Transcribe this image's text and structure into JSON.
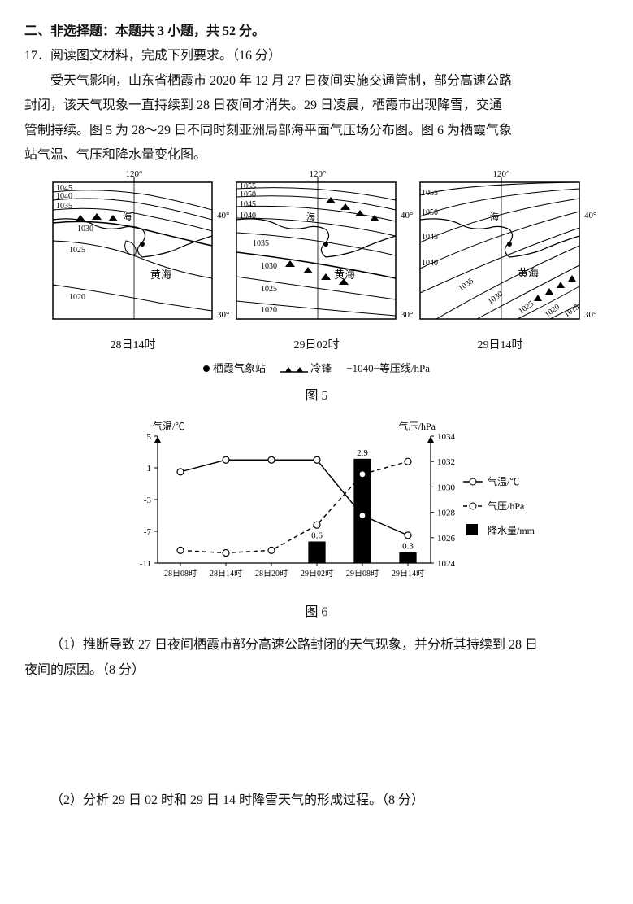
{
  "section_header": "二、非选择题：本题共 3 小题，共 52 分。",
  "q17_stem": "17．阅读图文材料，完成下列要求。（16 分）",
  "passage": {
    "l1": "受天气影响，山东省栖霞市 2020 年 12 月 27 日夜间实施交通管制，部分高速公路",
    "l2": "封闭，该天气现象一直持续到 28 日夜间才消失。29 日凌晨，栖霞市出现降雪，交通",
    "l3": "管制持续。图 5 为 28～29 日不同时刻亚洲局部海平面气压场分布图。图 6 为栖霞气象",
    "l4": "站气温、气压和降水量变化图。"
  },
  "maps": {
    "lon_label": "120°",
    "lat_top": "40°",
    "lat_bot": "30°",
    "sea": "黄海",
    "haixia": "海",
    "m1": {
      "time": "28日14时",
      "isobars": [
        "1045",
        "1040",
        "1035",
        "1030",
        "1025",
        "1020"
      ]
    },
    "m2": {
      "time": "29日02时",
      "isobars": [
        "1055",
        "1050",
        "1045",
        "1040",
        "1035",
        "1030",
        "1025",
        "1020"
      ]
    },
    "m3": {
      "time": "29日14时",
      "isobars": [
        "1055",
        "1050",
        "1045",
        "1040",
        "1035",
        "1030",
        "1025",
        "1020",
        "1015"
      ]
    }
  },
  "legend": {
    "station": "栖霞气象站",
    "front": "冷锋",
    "iso": "−1040−等压线/hPa"
  },
  "fig5_label": "图 5",
  "fig6_label": "图 6",
  "chart": {
    "y_left_title": "气温/℃",
    "y_right_title": "气压/hPa",
    "y_left_ticks": [
      "5",
      "1",
      "-3",
      "-7",
      "-11"
    ],
    "y_right_ticks": [
      "1034",
      "1032",
      "1030",
      "1028",
      "1026",
      "1024"
    ],
    "x_ticks": [
      "28日08时",
      "28日14时",
      "28日20时",
      "29日02时",
      "29日08时",
      "29日14时"
    ],
    "temp_series": [
      0.5,
      2,
      2,
      2,
      -5,
      -7.5
    ],
    "press_series": [
      1025,
      1024.8,
      1025,
      1027,
      1031,
      1032
    ],
    "precip_series": [
      0,
      0,
      0,
      0.6,
      2.9,
      0.3
    ],
    "precip_labels": [
      "",
      "",
      "",
      "0.6",
      "2.9",
      "0.3"
    ],
    "legend_temp": "气温/℃",
    "legend_press": "气压/hPa",
    "legend_precip": "降水量/mm",
    "colors": {
      "axis": "#000000",
      "temp_line": "#000000",
      "press_line": "#000000",
      "bar_fill": "#000000",
      "marker_fill": "#ffffff"
    }
  },
  "sub1_a": "（1）推断导致 27 日夜间栖霞市部分高速公路封闭的天气现象，并分析其持续到 28 日",
  "sub1_b": "夜间的原因。（8 分）",
  "sub2": "（2）分析 29 日 02 时和 29 日 14 时降雪天气的形成过程。（8 分）"
}
